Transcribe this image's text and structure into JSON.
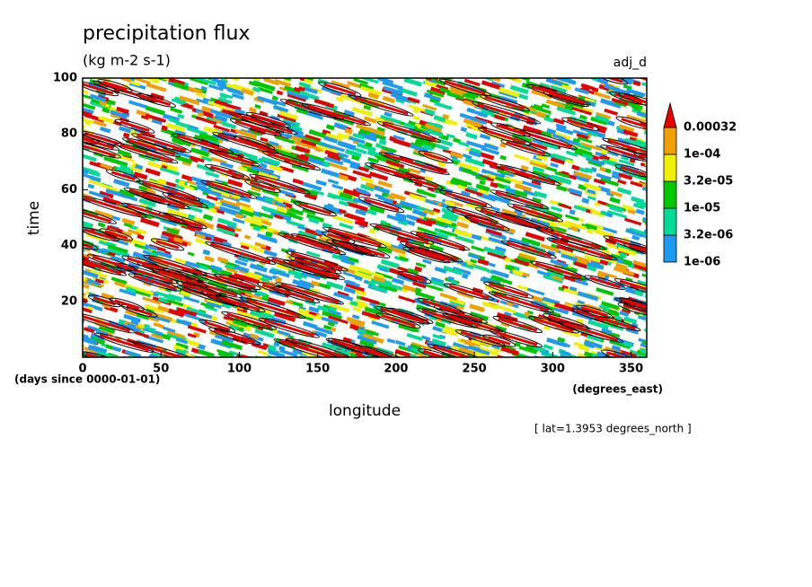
{
  "chart_data": {
    "type": "hovmoller",
    "title": "precipitation flux",
    "subtitle": "(kg m-2 s-1)",
    "label": "adj_d",
    "ylabel": "time",
    "yunits": "(days since 0000-01-01)",
    "xlabel": "longitude",
    "xunits": "(degrees_east)",
    "annotation": "[ lat=1.3953 degrees_north ]",
    "xlim": [
      0,
      360
    ],
    "xticks": [
      0,
      50,
      100,
      150,
      200,
      250,
      300,
      350
    ],
    "ylim": [
      0,
      100
    ],
    "yticks": [
      20,
      40,
      60,
      80,
      100
    ],
    "colorbar": {
      "levels": [
        {
          "value": 1e-06,
          "label": "1e-06"
        },
        {
          "value": 3.2e-06,
          "label": "3.2e-06"
        },
        {
          "value": 1e-05,
          "label": "1e-05"
        },
        {
          "value": 3.2e-05,
          "label": "3.2e-05"
        },
        {
          "value": 0.0001,
          "label": "1e-04"
        },
        0.00032
      ],
      "colors": [
        "#1e9bf0",
        "#00dc96",
        "#00c800",
        "#f0f000",
        "#f0a000",
        "#e60000"
      ]
    }
  }
}
